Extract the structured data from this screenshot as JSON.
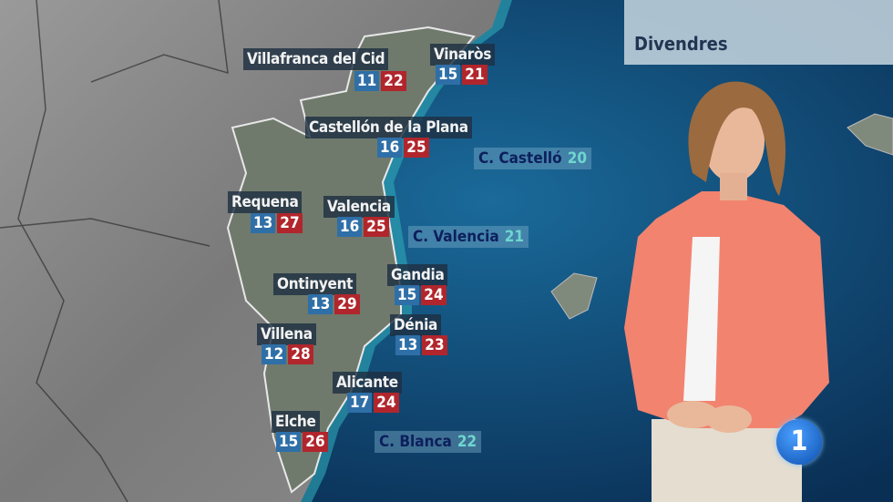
{
  "title": "Divendres",
  "channel_logo": "1",
  "colors": {
    "min_temp": "#2f6fa7",
    "max_temp": "#b1262c",
    "sea_temp": "#6fd6cf",
    "land": "#6f7a6c",
    "sea": "#0d3c66"
  },
  "cities": [
    {
      "name": "Villafranca del Cid",
      "min": "11",
      "max": "22"
    },
    {
      "name": "Vinaròs",
      "min": "15",
      "max": "21"
    },
    {
      "name": "Castellón de la Plana",
      "min": "16",
      "max": "25"
    },
    {
      "name": "Requena",
      "min": "13",
      "max": "27"
    },
    {
      "name": "Valencia",
      "min": "16",
      "max": "25"
    },
    {
      "name": "Ontinyent",
      "min": "13",
      "max": "29"
    },
    {
      "name": "Gandia",
      "min": "15",
      "max": "24"
    },
    {
      "name": "Villena",
      "min": "12",
      "max": "28"
    },
    {
      "name": "Dénia",
      "min": "13",
      "max": "23"
    },
    {
      "name": "Alicante",
      "min": "17",
      "max": "24"
    },
    {
      "name": "Elche",
      "min": "15",
      "max": "26"
    }
  ],
  "sea_areas": [
    {
      "name": "C. Castelló",
      "temp": "20"
    },
    {
      "name": "C. Valencia",
      "temp": "21"
    },
    {
      "name": "C. Blanca",
      "temp": "22"
    }
  ]
}
